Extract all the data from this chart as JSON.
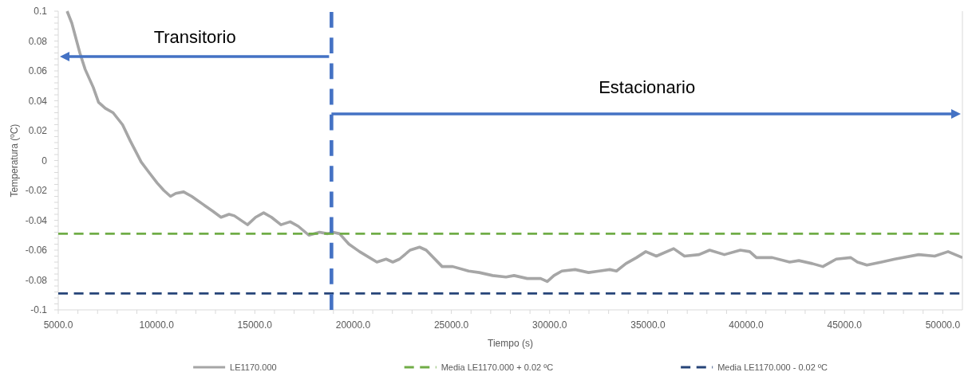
{
  "chart_data": {
    "type": "line",
    "xlabel": "Tiempo (s)",
    "ylabel": "Temperatura (ºC)",
    "legend": "bottom",
    "xlim": [
      5000,
      51000
    ],
    "ylim": [
      -0.1,
      0.1
    ],
    "xticks": [
      {
        "value": 5000,
        "label": "5000.0"
      },
      {
        "value": 6000,
        "label": null
      },
      {
        "value": 7000,
        "label": null
      },
      {
        "value": 8000,
        "label": null
      },
      {
        "value": 9000,
        "label": null
      },
      {
        "value": 10000,
        "label": "10000.0"
      },
      {
        "value": 11000,
        "label": null
      },
      {
        "value": 12000,
        "label": null
      },
      {
        "value": 13000,
        "label": null
      },
      {
        "value": 14000,
        "label": null
      },
      {
        "value": 15000,
        "label": "15000.0"
      },
      {
        "value": 16000,
        "label": null
      },
      {
        "value": 17000,
        "label": null
      },
      {
        "value": 18000,
        "label": null
      },
      {
        "value": 19000,
        "label": null
      },
      {
        "value": 20000,
        "label": "20000.0"
      },
      {
        "value": 21000,
        "label": null
      },
      {
        "value": 22000,
        "label": null
      },
      {
        "value": 23000,
        "label": null
      },
      {
        "value": 24000,
        "label": null
      },
      {
        "value": 25000,
        "label": "25000.0"
      },
      {
        "value": 26000,
        "label": null
      },
      {
        "value": 27000,
        "label": null
      },
      {
        "value": 28000,
        "label": null
      },
      {
        "value": 29000,
        "label": null
      },
      {
        "value": 30000,
        "label": "30000.0"
      },
      {
        "value": 31000,
        "label": null
      },
      {
        "value": 32000,
        "label": null
      },
      {
        "value": 33000,
        "label": null
      },
      {
        "value": 34000,
        "label": null
      },
      {
        "value": 35000,
        "label": "35000.0"
      },
      {
        "value": 36000,
        "label": null
      },
      {
        "value": 37000,
        "label": null
      },
      {
        "value": 38000,
        "label": null
      },
      {
        "value": 39000,
        "label": null
      },
      {
        "value": 40000,
        "label": "40000.0"
      },
      {
        "value": 41000,
        "label": null
      },
      {
        "value": 42000,
        "label": null
      },
      {
        "value": 43000,
        "label": null
      },
      {
        "value": 44000,
        "label": null
      },
      {
        "value": 45000,
        "label": "45000.0"
      },
      {
        "value": 46000,
        "label": null
      },
      {
        "value": 47000,
        "label": null
      },
      {
        "value": 48000,
        "label": null
      },
      {
        "value": 49000,
        "label": null
      },
      {
        "value": 50000,
        "label": "50000.0"
      }
    ],
    "yticks": [
      -0.1,
      {
        "value": -0.096,
        "label": null
      },
      {
        "value": -0.092,
        "label": null
      },
      {
        "value": -0.088,
        "label": null
      },
      {
        "value": -0.084,
        "label": null
      },
      -0.08,
      {
        "value": -0.076,
        "label": null
      },
      {
        "value": -0.072,
        "label": null
      },
      {
        "value": -0.068,
        "label": null
      },
      {
        "value": -0.064,
        "label": null
      },
      -0.06,
      {
        "value": -0.056,
        "label": null
      },
      {
        "value": -0.052,
        "label": null
      },
      {
        "value": -0.048,
        "label": null
      },
      {
        "value": -0.044,
        "label": null
      },
      -0.04,
      {
        "value": -0.036,
        "label": null
      },
      {
        "value": -0.032,
        "label": null
      },
      {
        "value": -0.028,
        "label": null
      },
      {
        "value": -0.024,
        "label": null
      },
      -0.02,
      {
        "value": -0.016,
        "label": null
      },
      {
        "value": -0.012,
        "label": null
      },
      {
        "value": -0.008,
        "label": null
      },
      {
        "value": -0.004,
        "label": null
      },
      0,
      {
        "value": 0.004,
        "label": null
      },
      {
        "value": 0.008,
        "label": null
      },
      {
        "value": 0.012,
        "label": null
      },
      {
        "value": 0.016,
        "label": null
      },
      0.02,
      {
        "value": 0.024,
        "label": null
      },
      {
        "value": 0.028,
        "label": null
      },
      {
        "value": 0.032,
        "label": null
      },
      {
        "value": 0.036,
        "label": null
      },
      0.04,
      {
        "value": 0.044,
        "label": null
      },
      {
        "value": 0.048,
        "label": null
      },
      {
        "value": 0.052,
        "label": null
      },
      {
        "value": 0.056,
        "label": null
      },
      0.06,
      {
        "value": 0.064,
        "label": null
      },
      {
        "value": 0.068,
        "label": null
      },
      {
        "value": 0.072,
        "label": null
      },
      {
        "value": 0.076,
        "label": null
      },
      0.08,
      {
        "value": 0.084,
        "label": null
      },
      {
        "value": 0.088,
        "label": null
      },
      {
        "value": 0.092,
        "label": null
      },
      {
        "value": 0.096,
        "label": null
      },
      0.1
    ],
    "series": [
      {
        "name": "LE1170.000",
        "color": "#a6a6a6",
        "line_style": "solid",
        "x": [
          5450,
          5690,
          6100,
          6370,
          6780,
          7050,
          7390,
          7790,
          8270,
          8670,
          9220,
          9620,
          10030,
          10370,
          10710,
          10980,
          11380,
          11790,
          12330,
          12870,
          13280,
          13690,
          13960,
          14630,
          15040,
          15450,
          15850,
          16330,
          16800,
          17210,
          17750,
          18290,
          18700,
          18970,
          19310,
          19790,
          20330,
          21210,
          21680,
          22020,
          22360,
          22900,
          23380,
          23720,
          24530,
          25070,
          25880,
          26420,
          27100,
          27780,
          28190,
          28860,
          29540,
          29880,
          30220,
          30620,
          31300,
          31980,
          32520,
          33060,
          33400,
          33880,
          34420,
          34890,
          35430,
          36310,
          36860,
          37600,
          38140,
          38890,
          39700,
          40180,
          40520,
          41330,
          42210,
          42680,
          43360,
          43900,
          44580,
          45320,
          45660,
          46140,
          46880,
          47560,
          48780,
          49590,
          50270,
          51000
        ],
        "values": [
          0.1,
          0.092,
          0.072,
          0.061,
          0.049,
          0.039,
          0.035,
          0.032,
          0.024,
          0.013,
          -0.001,
          -0.008,
          -0.015,
          -0.02,
          -0.024,
          -0.022,
          -0.021,
          -0.024,
          -0.029,
          -0.034,
          -0.038,
          -0.036,
          -0.037,
          -0.043,
          -0.038,
          -0.035,
          -0.038,
          -0.043,
          -0.041,
          -0.044,
          -0.05,
          -0.048,
          -0.049,
          -0.048,
          -0.049,
          -0.056,
          -0.061,
          -0.068,
          -0.066,
          -0.068,
          -0.066,
          -0.06,
          -0.058,
          -0.06,
          -0.071,
          -0.071,
          -0.074,
          -0.075,
          -0.077,
          -0.078,
          -0.077,
          -0.079,
          -0.079,
          -0.081,
          -0.077,
          -0.074,
          -0.073,
          -0.075,
          -0.074,
          -0.073,
          -0.074,
          -0.069,
          -0.065,
          -0.061,
          -0.064,
          -0.059,
          -0.064,
          -0.063,
          -0.06,
          -0.063,
          -0.06,
          -0.061,
          -0.065,
          -0.065,
          -0.068,
          -0.067,
          -0.069,
          -0.071,
          -0.066,
          -0.065,
          -0.068,
          -0.07,
          -0.068,
          -0.066,
          -0.063,
          -0.064,
          -0.061,
          -0.065
        ]
      },
      {
        "name": "Media LE1170.000 + 0.02 ºC",
        "color": "#70ad47",
        "line_style": "dashed",
        "x": [
          5000,
          51000
        ],
        "values": [
          -0.049,
          -0.049
        ]
      },
      {
        "name": "Media LE1170.000 - 0.02 ºC",
        "color": "#264478",
        "line_style": "dashed",
        "x": [
          5000,
          51000
        ],
        "values": [
          -0.089,
          -0.089
        ]
      },
      {
        "color": "#4472c4",
        "line_style": "dashed",
        "x": [
          18900,
          18900
        ],
        "values": [
          -0.1,
          0.1
        ]
      }
    ],
    "annotations": [
      "Transitorio",
      "Estacionario"
    ]
  }
}
